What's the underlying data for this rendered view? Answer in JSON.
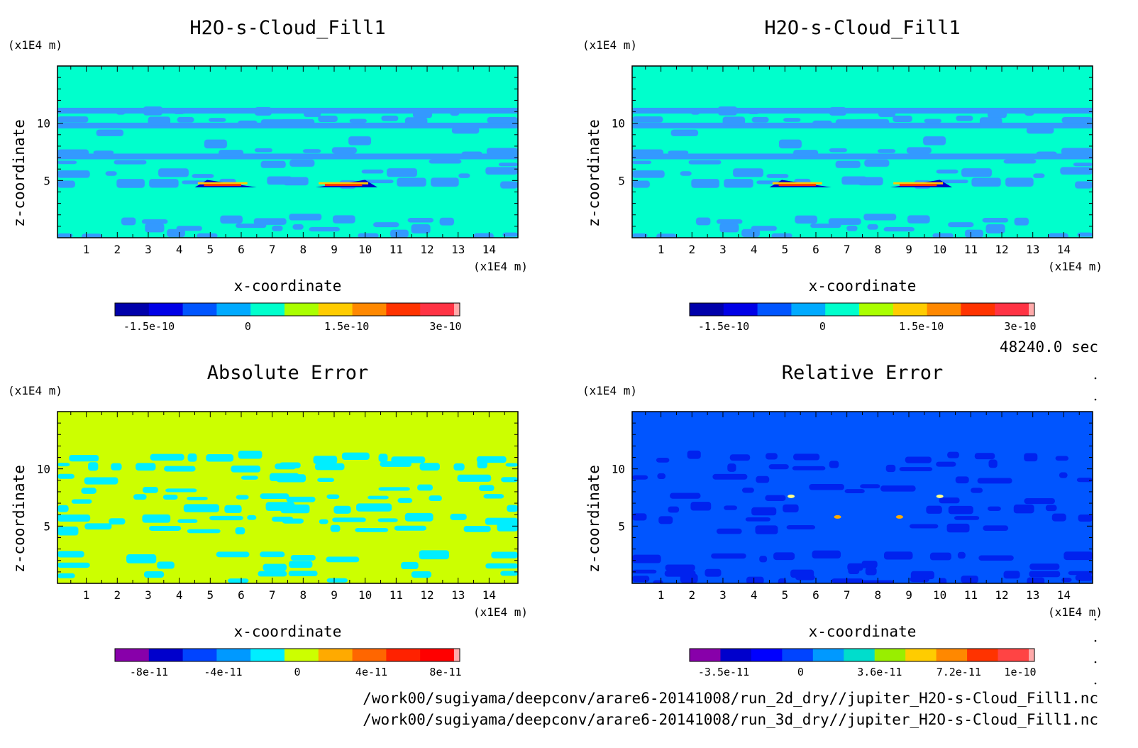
{
  "colors": {
    "background": "#ffffff",
    "frame": "#000000"
  },
  "footer": {
    "time": "48240.0 sec",
    "file1": "/work00/sugiyama/deepconv/arare6-20141008/run_2d_dry//jupiter_H2O-s-Cloud_Fill1.nc",
    "file2": "/work00/sugiyama/deepconv/arare6-20141008/run_3d_dry//jupiter_H2O-s-Cloud_Fill1.nc"
  },
  "chart_data": [
    {
      "type": "heatmap",
      "title": "H2O-s-Cloud_Fill1",
      "xlabel": "x-coordinate",
      "ylabel": "z-coordinate",
      "x_unit": "(x1E4 m)",
      "y_unit": "(x1E4 m)",
      "x_ticks": [
        "1",
        "2",
        "3",
        "4",
        "5",
        "6",
        "7",
        "8",
        "9",
        "10",
        "11",
        "12",
        "13",
        "14"
      ],
      "y_ticks": [
        "5",
        "10"
      ],
      "xlim": [
        0.07,
        14.93
      ],
      "ylim": [
        0,
        15
      ],
      "field_description": "cloud field, mostly 0 with banded small negative values; two positive/negative features near z=4.5 at x≈5.5 and x≈9.5",
      "colorbar": {
        "colors": [
          "#0000aa",
          "#0000e6",
          "#0055ff",
          "#00aaff",
          "#00ffcc",
          "#aaff00",
          "#ffcc00",
          "#ff8800",
          "#ff3300",
          "#ff3344",
          "#ffaaaa"
        ],
        "tick_labels": [
          "-1.5e-10",
          "0",
          "1.5e-10",
          "3e-10"
        ],
        "tick_values": [
          -1.5e-10,
          0,
          1.5e-10,
          3e-10
        ]
      },
      "base_color": "#00ffcc",
      "band_color": "#3399ff"
    },
    {
      "type": "heatmap",
      "title": "H2O-s-Cloud_Fill1",
      "xlabel": "x-coordinate",
      "ylabel": "z-coordinate",
      "x_unit": "(x1E4 m)",
      "y_unit": "(x1E4 m)",
      "x_ticks": [
        "1",
        "2",
        "3",
        "4",
        "5",
        "6",
        "7",
        "8",
        "9",
        "10",
        "11",
        "12",
        "13",
        "14"
      ],
      "y_ticks": [
        "5",
        "10"
      ],
      "xlim": [
        0.07,
        14.93
      ],
      "ylim": [
        0,
        15
      ],
      "colorbar": {
        "colors": [
          "#0000aa",
          "#0000e6",
          "#0055ff",
          "#00aaff",
          "#00ffcc",
          "#aaff00",
          "#ffcc00",
          "#ff8800",
          "#ff3300",
          "#ff3344",
          "#ffaaaa"
        ],
        "tick_labels": [
          "-1.5e-10",
          "0",
          "1.5e-10",
          "3e-10"
        ],
        "tick_values": [
          -1.5e-10,
          0,
          1.5e-10,
          3e-10
        ]
      },
      "base_color": "#00ffcc",
      "band_color": "#3399ff"
    },
    {
      "type": "heatmap",
      "title": "Absolute Error",
      "xlabel": "x-coordinate",
      "ylabel": "z-coordinate",
      "x_unit": "(x1E4 m)",
      "y_unit": "(x1E4 m)",
      "x_ticks": [
        "1",
        "2",
        "3",
        "4",
        "5",
        "6",
        "7",
        "8",
        "9",
        "10",
        "11",
        "12",
        "13",
        "14"
      ],
      "y_ticks": [
        "5",
        "10"
      ],
      "xlim": [
        0.07,
        14.93
      ],
      "ylim": [
        0,
        15
      ],
      "colorbar": {
        "colors": [
          "#8800aa",
          "#0000cc",
          "#0044ff",
          "#0099ff",
          "#00eeff",
          "#ccff00",
          "#ffaa00",
          "#ff6600",
          "#ff2200",
          "#ff0000",
          "#ffaaaa"
        ],
        "tick_labels": [
          "-8e-11",
          "-4e-11",
          "0",
          "4e-11",
          "8e-11"
        ],
        "tick_values": [
          -8e-11,
          -4e-11,
          0,
          4e-11,
          8e-11
        ]
      },
      "base_color": "#ccff00",
      "band_color": "#00eeff"
    },
    {
      "type": "heatmap",
      "title": "Relative Error",
      "xlabel": "x-coordinate",
      "ylabel": "z-coordinate",
      "x_unit": "(x1E4 m)",
      "y_unit": "(x1E4 m)",
      "x_ticks": [
        "1",
        "2",
        "3",
        "4",
        "5",
        "6",
        "7",
        "8",
        "9",
        "10",
        "11",
        "12",
        "13",
        "14"
      ],
      "y_ticks": [
        "5",
        "10"
      ],
      "xlim": [
        0.07,
        14.93
      ],
      "ylim": [
        0,
        15
      ],
      "colorbar": {
        "colors": [
          "#8800aa",
          "#0000cc",
          "#0000ff",
          "#0044ff",
          "#0099ff",
          "#00ddcc",
          "#99ee00",
          "#ffcc00",
          "#ff8800",
          "#ff3300",
          "#ff4444",
          "#ffaaaa"
        ],
        "tick_labels": [
          "-3.5e-11",
          "0",
          "3.6e-11",
          "7.2e-11",
          "1e-10"
        ],
        "tick_values": [
          -3.5e-11,
          0,
          3.6e-11,
          7.2e-11,
          1e-10
        ]
      },
      "base_color": "#0055ff",
      "band_color": "#0022ee"
    }
  ]
}
